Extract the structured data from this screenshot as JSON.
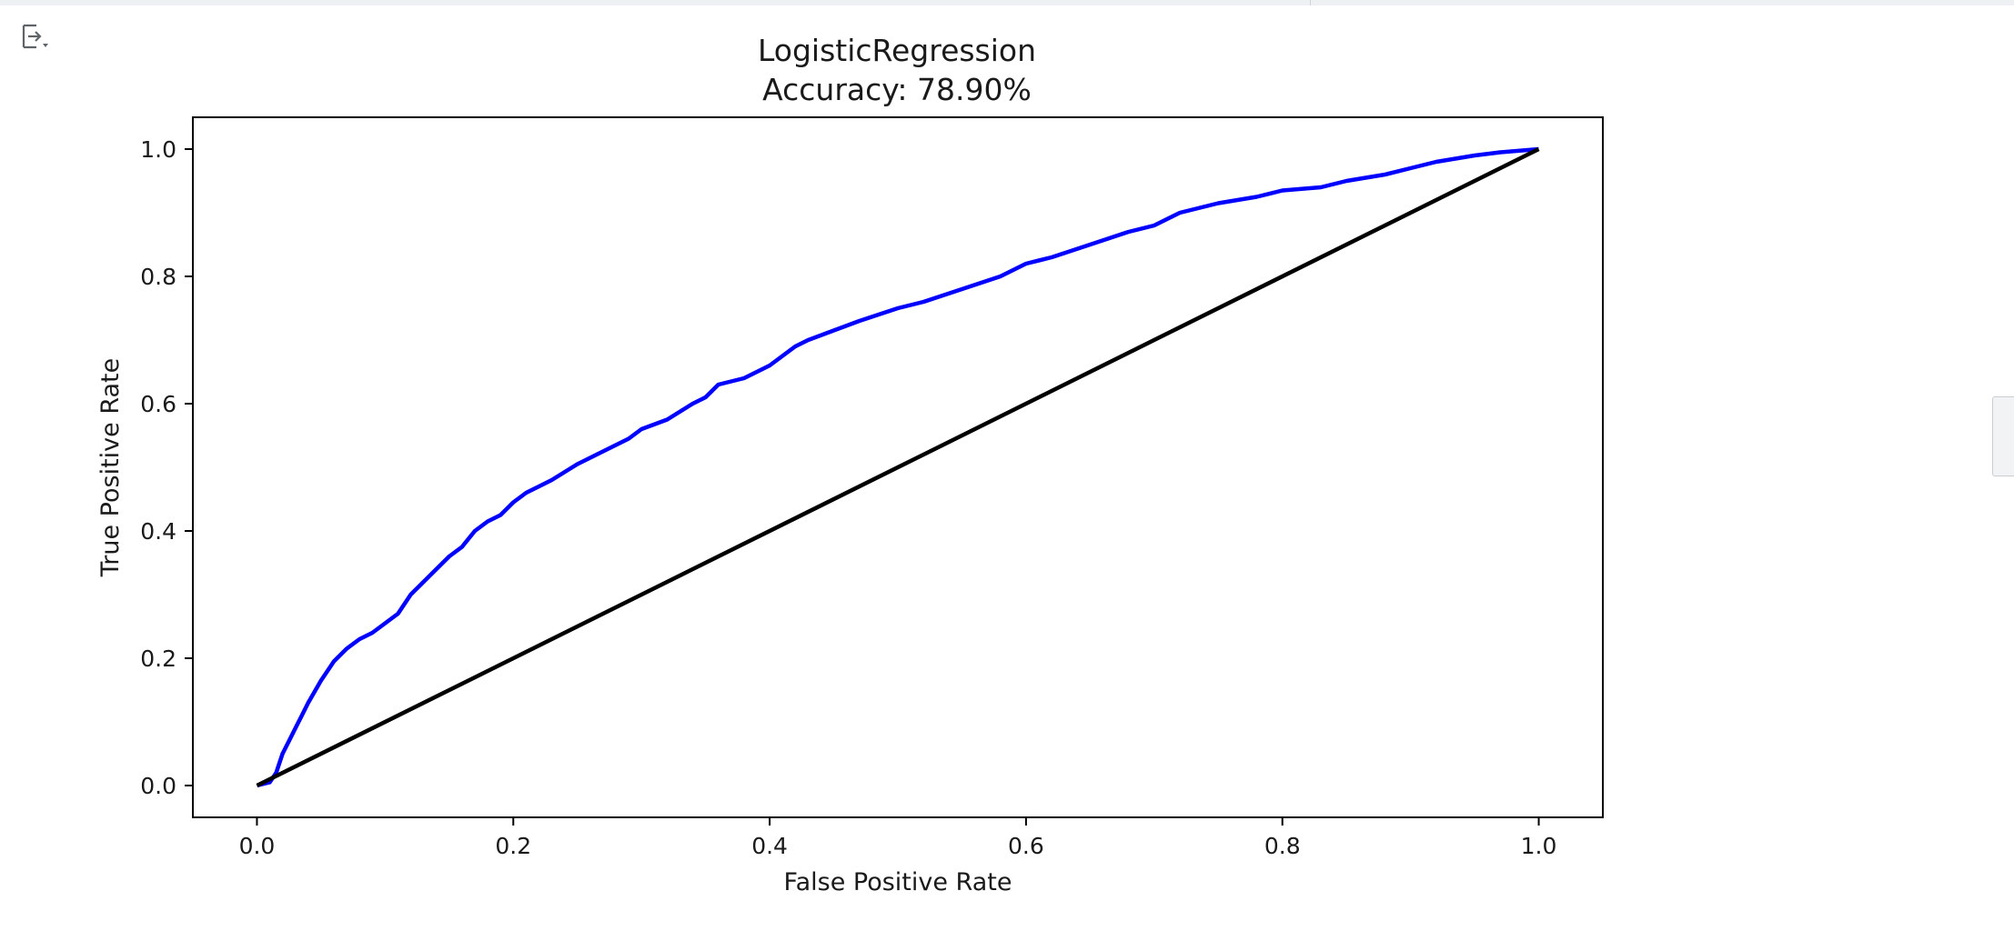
{
  "cell": {
    "output_toggle_icon": "output-collapse-icon"
  },
  "chart_data": {
    "type": "line",
    "title": "LogisticRegression",
    "subtitle": "Accuracy: 78.90%",
    "xlabel": "False Positive Rate",
    "ylabel": "True Positive Rate",
    "xlim": [
      -0.05,
      1.05
    ],
    "ylim": [
      -0.05,
      1.05
    ],
    "xticks": [
      0.0,
      0.2,
      0.4,
      0.6,
      0.8,
      1.0
    ],
    "yticks": [
      0.0,
      0.2,
      0.4,
      0.6,
      0.8,
      1.0
    ],
    "xtick_labels": [
      "0.0",
      "0.2",
      "0.4",
      "0.6",
      "0.8",
      "1.0"
    ],
    "ytick_labels": [
      "0.0",
      "0.2",
      "0.4",
      "0.6",
      "0.8",
      "1.0"
    ],
    "grid": false,
    "series": [
      {
        "color": "#0000ff",
        "x": [
          0.0,
          0.01,
          0.015,
          0.02,
          0.025,
          0.03,
          0.035,
          0.04,
          0.05,
          0.055,
          0.06,
          0.07,
          0.08,
          0.09,
          0.1,
          0.11,
          0.12,
          0.13,
          0.14,
          0.15,
          0.16,
          0.17,
          0.18,
          0.19,
          0.2,
          0.21,
          0.22,
          0.23,
          0.25,
          0.27,
          0.29,
          0.3,
          0.32,
          0.34,
          0.35,
          0.36,
          0.38,
          0.4,
          0.42,
          0.43,
          0.45,
          0.47,
          0.5,
          0.52,
          0.55,
          0.58,
          0.6,
          0.62,
          0.65,
          0.68,
          0.7,
          0.72,
          0.75,
          0.78,
          0.8,
          0.83,
          0.85,
          0.88,
          0.9,
          0.92,
          0.95,
          0.97,
          1.0
        ],
        "y": [
          0.0,
          0.005,
          0.02,
          0.05,
          0.07,
          0.09,
          0.11,
          0.13,
          0.165,
          0.18,
          0.195,
          0.215,
          0.23,
          0.24,
          0.255,
          0.27,
          0.3,
          0.32,
          0.34,
          0.36,
          0.375,
          0.4,
          0.415,
          0.425,
          0.445,
          0.46,
          0.47,
          0.48,
          0.505,
          0.525,
          0.545,
          0.56,
          0.575,
          0.6,
          0.61,
          0.63,
          0.64,
          0.66,
          0.69,
          0.7,
          0.715,
          0.73,
          0.75,
          0.76,
          0.78,
          0.8,
          0.82,
          0.83,
          0.85,
          0.87,
          0.88,
          0.9,
          0.915,
          0.925,
          0.935,
          0.94,
          0.95,
          0.96,
          0.97,
          0.98,
          0.99,
          0.995,
          1.0
        ]
      },
      {
        "color": "#000000",
        "x": [
          0.0,
          1.0
        ],
        "y": [
          0.0,
          1.0
        ]
      }
    ]
  }
}
